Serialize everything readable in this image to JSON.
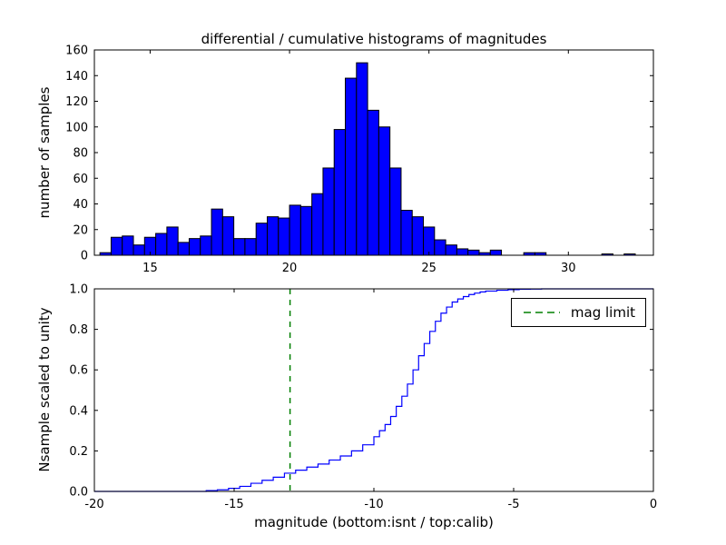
{
  "chart_data": [
    {
      "type": "bar",
      "subplot": "top",
      "title": "differential / cumulative histograms of magnitudes",
      "xlabel": "",
      "ylabel": "number of samples",
      "xlim": [
        13.0,
        33.05
      ],
      "ylim": [
        0,
        160
      ],
      "xticks": [
        15,
        20,
        25,
        30
      ],
      "xtick_labels": [
        "15",
        "20",
        "25",
        "30"
      ],
      "yticks": [
        0,
        20,
        40,
        60,
        80,
        100,
        120,
        140,
        160
      ],
      "ytick_labels": [
        "0",
        "20",
        "40",
        "60",
        "80",
        "100",
        "120",
        "140",
        "160"
      ],
      "bin_start": 13.2,
      "bin_width": 0.4,
      "values": [
        2,
        14,
        15,
        8,
        14,
        17,
        22,
        10,
        13,
        15,
        36,
        30,
        13,
        13,
        25,
        30,
        29,
        39,
        38,
        48,
        68,
        98,
        138,
        150,
        113,
        100,
        68,
        35,
        30,
        22,
        12,
        8,
        5,
        4,
        2,
        4,
        0,
        0,
        2,
        2,
        0,
        0,
        0,
        0,
        0,
        1,
        0,
        1
      ],
      "bar_color": "#0000ff",
      "bar_edge_color": "#000000",
      "grid": false
    },
    {
      "type": "line",
      "subplot": "bottom",
      "title": "",
      "xlabel": "magnitude (bottom:isnt / top:calib)",
      "ylabel": "Nsample scaled to unity",
      "xlim": [
        -20,
        0
      ],
      "ylim": [
        0.0,
        1.0
      ],
      "xticks": [
        -20,
        -15,
        -10,
        -5,
        0
      ],
      "xtick_labels": [
        "-20",
        "-15",
        "-10",
        "-5",
        "0"
      ],
      "yticks": [
        0.0,
        0.2,
        0.4,
        0.6,
        0.8,
        1.0
      ],
      "ytick_labels": [
        "0.0",
        "0.2",
        "0.4",
        "0.6",
        "0.8",
        "1.0"
      ],
      "step": true,
      "line_color": "#0000ff",
      "x": [
        -20,
        -16.4,
        -16.0,
        -15.6,
        -15.2,
        -14.8,
        -14.4,
        -14.0,
        -13.6,
        -13.2,
        -12.8,
        -12.4,
        -12.0,
        -11.6,
        -11.2,
        -10.8,
        -10.4,
        -10.0,
        -9.8,
        -9.6,
        -9.4,
        -9.2,
        -9.0,
        -8.8,
        -8.6,
        -8.4,
        -8.2,
        -8.0,
        -7.8,
        -7.6,
        -7.4,
        -7.2,
        -7.0,
        -6.8,
        -6.6,
        -6.4,
        -6.2,
        -6.0,
        -5.6,
        -5.2,
        -4.8,
        -4.4,
        -4.0,
        0.0
      ],
      "y": [
        0,
        0,
        0.004,
        0.008,
        0.015,
        0.025,
        0.04,
        0.055,
        0.07,
        0.09,
        0.105,
        0.12,
        0.135,
        0.155,
        0.175,
        0.2,
        0.23,
        0.27,
        0.3,
        0.33,
        0.37,
        0.42,
        0.47,
        0.53,
        0.6,
        0.67,
        0.73,
        0.79,
        0.84,
        0.88,
        0.91,
        0.935,
        0.95,
        0.962,
        0.972,
        0.979,
        0.985,
        0.989,
        0.993,
        0.996,
        0.998,
        0.999,
        1.0,
        1.0
      ],
      "vline": {
        "x": -13,
        "color": "#008000",
        "linestyle": "dashed"
      },
      "legend": {
        "label": "mag limit",
        "position": "upper right",
        "line_color": "#008000",
        "line_style": "dashed"
      },
      "grid": false
    }
  ],
  "colors": {
    "background": "#ffffff",
    "axes": "#000000",
    "text": "#000000"
  }
}
